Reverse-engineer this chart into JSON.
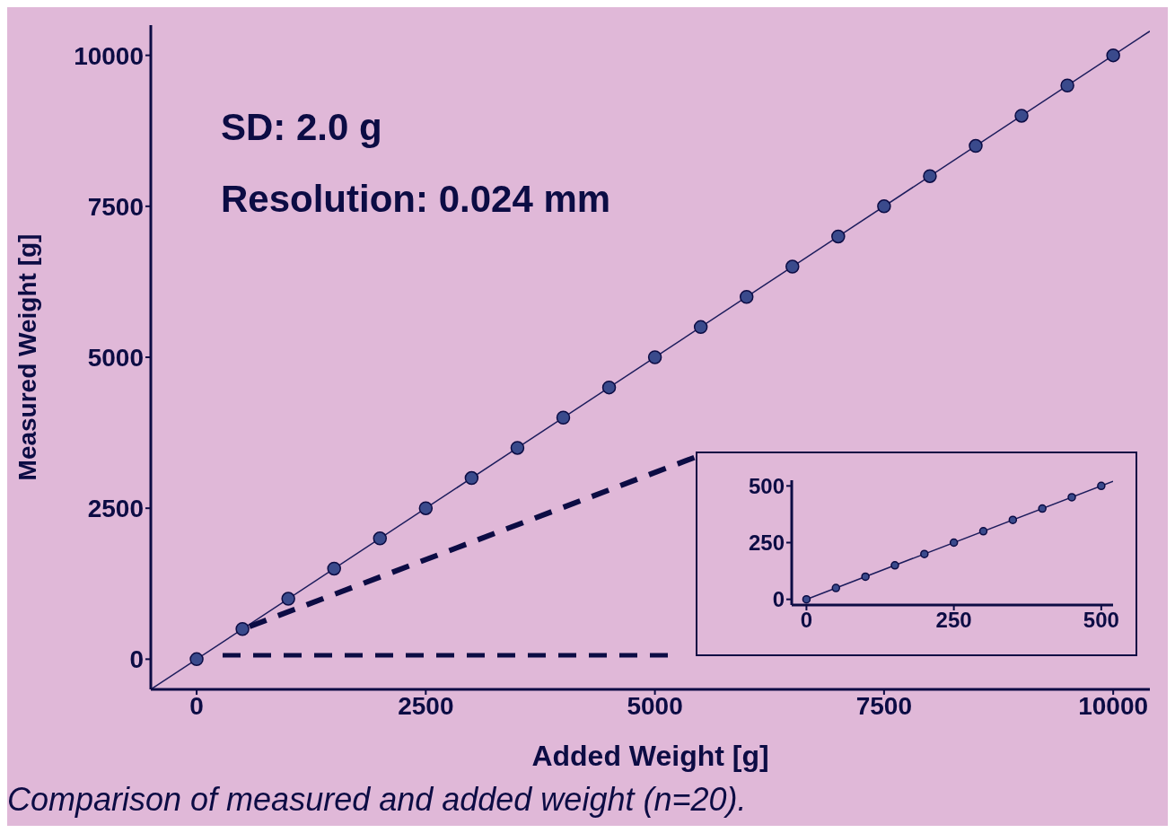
{
  "chart_data": [
    {
      "type": "scatter",
      "xlabel": "Added Weight [g]",
      "ylabel": "Measured Weight [g]",
      "xlim": [
        -500,
        10400
      ],
      "ylim": [
        -500,
        10500
      ],
      "xticks": [
        0,
        2500,
        5000,
        7500,
        10000
      ],
      "yticks": [
        0,
        2500,
        5000,
        7500,
        10000
      ],
      "line_style": "solid",
      "annotations": [
        "SD: 2.0 g",
        "Resolution: 0.024 mm",
        "Comparison of measured and added weight  (n=20)."
      ],
      "series": [
        {
          "type": "scatter",
          "marker": "circle",
          "color": "#3a4a8c",
          "x": [
            0,
            500,
            1000,
            1500,
            2000,
            2500,
            3000,
            3500,
            4000,
            4500,
            5000,
            5500,
            6000,
            6500,
            7000,
            7500,
            8000,
            8500,
            9000,
            9500,
            10000
          ],
          "values": [
            0,
            500,
            1000,
            1500,
            2000,
            2500,
            3000,
            3500,
            4000,
            4500,
            5000,
            5500,
            6000,
            6500,
            7000,
            7500,
            8000,
            8500,
            9000,
            9500,
            10000
          ]
        },
        {
          "type": "line",
          "color": "#1c1c5c",
          "x": [
            -500,
            10400
          ],
          "values": [
            -500,
            10400
          ]
        }
      ]
    },
    {
      "type": "scatter",
      "xlim": [
        -25,
        520
      ],
      "ylim": [
        -25,
        525
      ],
      "xticks": [
        0,
        250,
        500
      ],
      "yticks": [
        0,
        250,
        500
      ],
      "line_style": "solid",
      "series": [
        {
          "type": "scatter",
          "marker": "circle",
          "color": "#3a4a8c",
          "x": [
            0,
            50,
            100,
            150,
            200,
            250,
            300,
            350,
            400,
            450,
            500
          ],
          "values": [
            0,
            50,
            100,
            150,
            200,
            250,
            300,
            350,
            400,
            450,
            500
          ]
        },
        {
          "type": "line",
          "color": "#1c1c5c",
          "x": [
            0,
            520
          ],
          "values": [
            0,
            520
          ]
        }
      ]
    }
  ]
}
